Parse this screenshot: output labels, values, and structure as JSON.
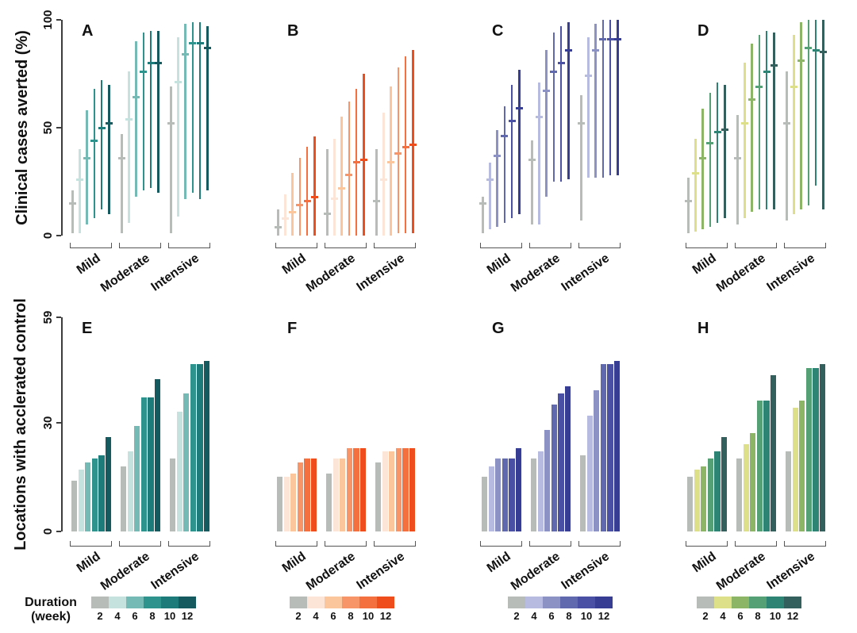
{
  "figure": {
    "background": "#ffffff",
    "rows": {
      "top": {
        "ylabel": "Clinical cases averted (%)",
        "ylim": [
          0,
          100
        ],
        "yticks": [
          "0",
          "50",
          "100"
        ]
      },
      "bottom": {
        "ylabel": "Locations with acclerated control",
        "ylim": [
          0,
          59
        ],
        "yticks": [
          "0",
          "30",
          "59"
        ]
      }
    },
    "categories": [
      "Mild",
      "Moderate",
      "Intensive"
    ],
    "legend": {
      "title_line1": "Duration",
      "title_line2": "(week)",
      "tick_labels": [
        "2",
        "4",
        "6",
        "8",
        "10",
        "12"
      ],
      "position": "bottom"
    }
  },
  "palettes": {
    "teal": [
      "#b7bcb8",
      "#c5e2de",
      "#76bab6",
      "#2f938d",
      "#1d7b7a",
      "#155a5f"
    ],
    "orange": [
      "#b7bcb8",
      "#fce4d6",
      "#fbc69c",
      "#f79468",
      "#f4713f",
      "#ef4e1c"
    ],
    "purple": [
      "#b7bcb8",
      "#b7bbdf",
      "#8c92c3",
      "#6069ad",
      "#4a50a3",
      "#373d92"
    ],
    "green": [
      "#b7bcb8",
      "#dee089",
      "#8db566",
      "#55a075",
      "#2d8374",
      "#33605c"
    ]
  },
  "chart_data": [
    {
      "id": "A",
      "type": "errorbar",
      "row": "top",
      "palette": "teal",
      "title": "A",
      "ylabel": "Clinical cases averted (%)",
      "ylim": [
        0,
        100
      ],
      "categories": [
        "Mild",
        "Moderate",
        "Intensive"
      ],
      "durations_weeks": [
        2,
        4,
        6,
        8,
        10,
        12
      ],
      "series": [
        {
          "category": "Mild",
          "intervals_low_mid_high": [
            [
              1,
              15,
              21
            ],
            [
              1,
              26,
              40
            ],
            [
              5,
              36,
              58
            ],
            [
              8,
              44,
              68
            ],
            [
              12,
              50,
              72
            ],
            [
              10,
              52,
              70
            ]
          ]
        },
        {
          "category": "Moderate",
          "intervals_low_mid_high": [
            [
              1,
              36,
              47
            ],
            [
              6,
              54,
              76
            ],
            [
              18,
              64,
              90
            ],
            [
              21,
              76,
              94
            ],
            [
              22,
              80,
              95
            ],
            [
              20,
              80,
              95
            ]
          ]
        },
        {
          "category": "Intensive",
          "intervals_low_mid_high": [
            [
              1,
              52,
              69
            ],
            [
              9,
              71,
              92
            ],
            [
              17,
              84,
              98
            ],
            [
              20,
              89,
              99
            ],
            [
              17,
              89,
              99
            ],
            [
              21,
              87,
              97
            ]
          ]
        }
      ]
    },
    {
      "id": "B",
      "type": "errorbar",
      "row": "top",
      "palette": "orange",
      "title": "B",
      "ylabel": "Clinical cases averted (%)",
      "ylim": [
        0,
        100
      ],
      "categories": [
        "Mild",
        "Moderate",
        "Intensive"
      ],
      "durations_weeks": [
        2,
        4,
        6,
        8,
        10,
        12
      ],
      "series": [
        {
          "category": "Mild",
          "intervals_low_mid_high": [
            [
              0,
              4,
              12
            ],
            [
              0,
              8,
              19
            ],
            [
              0,
              11,
              29
            ],
            [
              0,
              14,
              36
            ],
            [
              0,
              16,
              41
            ],
            [
              0,
              18,
              46
            ]
          ]
        },
        {
          "category": "Moderate",
          "intervals_low_mid_high": [
            [
              0,
              10,
              40
            ],
            [
              0,
              17,
              45
            ],
            [
              0,
              22,
              55
            ],
            [
              0,
              28,
              62
            ],
            [
              0,
              34,
              68
            ],
            [
              0,
              35,
              75
            ]
          ]
        },
        {
          "category": "Intensive",
          "intervals_low_mid_high": [
            [
              0,
              16,
              40
            ],
            [
              0,
              26,
              57
            ],
            [
              0,
              34,
              69
            ],
            [
              1,
              38,
              78
            ],
            [
              1,
              41,
              83
            ],
            [
              1,
              42,
              86
            ]
          ]
        }
      ]
    },
    {
      "id": "C",
      "type": "errorbar",
      "row": "top",
      "palette": "purple",
      "title": "C",
      "ylabel": "Clinical cases averted (%)",
      "ylim": [
        0,
        100
      ],
      "categories": [
        "Mild",
        "Moderate",
        "Intensive"
      ],
      "durations_weeks": [
        2,
        4,
        6,
        8,
        10,
        12
      ],
      "series": [
        {
          "category": "Mild",
          "intervals_low_mid_high": [
            [
              1,
              15,
              18
            ],
            [
              3,
              26,
              34
            ],
            [
              4,
              37,
              49
            ],
            [
              6,
              46,
              60
            ],
            [
              8,
              53,
              70
            ],
            [
              10,
              59,
              77
            ]
          ]
        },
        {
          "category": "Moderate",
          "intervals_low_mid_high": [
            [
              5,
              35,
              44
            ],
            [
              5,
              55,
              71
            ],
            [
              18,
              67,
              86
            ],
            [
              25,
              76,
              94
            ],
            [
              25,
              80,
              97
            ],
            [
              26,
              86,
              99
            ]
          ]
        },
        {
          "category": "Intensive",
          "intervals_low_mid_high": [
            [
              7,
              52,
              65
            ],
            [
              27,
              74,
              92
            ],
            [
              27,
              86,
              98
            ],
            [
              27,
              91,
              100
            ],
            [
              28,
              91,
              100
            ],
            [
              28,
              91,
              100
            ]
          ]
        }
      ]
    },
    {
      "id": "D",
      "type": "errorbar",
      "row": "top",
      "palette": "green",
      "title": "D",
      "ylabel": "Clinical cases averted (%)",
      "ylim": [
        0,
        100
      ],
      "categories": [
        "Mild",
        "Moderate",
        "Intensive"
      ],
      "durations_weeks": [
        2,
        4,
        6,
        8,
        10,
        12
      ],
      "series": [
        {
          "category": "Mild",
          "intervals_low_mid_high": [
            [
              1,
              16,
              27
            ],
            [
              2,
              29,
              45
            ],
            [
              3,
              36,
              59
            ],
            [
              4,
              43,
              66
            ],
            [
              6,
              48,
              71
            ],
            [
              8,
              49,
              70
            ]
          ]
        },
        {
          "category": "Moderate",
          "intervals_low_mid_high": [
            [
              5,
              36,
              56
            ],
            [
              8,
              52,
              80
            ],
            [
              11,
              63,
              89
            ],
            [
              12,
              69,
              93
            ],
            [
              12,
              76,
              95
            ],
            [
              12,
              79,
              94
            ]
          ]
        },
        {
          "category": "Intensive",
          "intervals_low_mid_high": [
            [
              7,
              52,
              76
            ],
            [
              10,
              69,
              93
            ],
            [
              12,
              81,
              99
            ],
            [
              14,
              87,
              100
            ],
            [
              23,
              86,
              100
            ],
            [
              12,
              85,
              100
            ]
          ]
        }
      ]
    },
    {
      "id": "E",
      "type": "bar",
      "row": "bottom",
      "palette": "teal",
      "title": "E",
      "ylabel": "Locations with acclerated control",
      "ylim": [
        0,
        59
      ],
      "categories": [
        "Mild",
        "Moderate",
        "Intensive"
      ],
      "durations_weeks": [
        2,
        4,
        6,
        8,
        10,
        12
      ],
      "series": [
        {
          "category": "Mild",
          "values": [
            14,
            17,
            19,
            20,
            21,
            26
          ]
        },
        {
          "category": "Moderate",
          "values": [
            18,
            22,
            29,
            37,
            37,
            42
          ]
        },
        {
          "category": "Intensive",
          "values": [
            20,
            33,
            38,
            46,
            46,
            47
          ]
        }
      ]
    },
    {
      "id": "F",
      "type": "bar",
      "row": "bottom",
      "palette": "orange",
      "title": "F",
      "ylabel": "Locations with acclerated control",
      "ylim": [
        0,
        59
      ],
      "categories": [
        "Mild",
        "Moderate",
        "Intensive"
      ],
      "durations_weeks": [
        2,
        4,
        6,
        8,
        10,
        12
      ],
      "series": [
        {
          "category": "Mild",
          "values": [
            15,
            15,
            16,
            19,
            20,
            20
          ]
        },
        {
          "category": "Moderate",
          "values": [
            16,
            20,
            20,
            23,
            23,
            23
          ]
        },
        {
          "category": "Intensive",
          "values": [
            19,
            22,
            22,
            23,
            23,
            23
          ]
        }
      ]
    },
    {
      "id": "G",
      "type": "bar",
      "row": "bottom",
      "palette": "purple",
      "title": "G",
      "ylabel": "Locations with acclerated control",
      "ylim": [
        0,
        59
      ],
      "categories": [
        "Mild",
        "Moderate",
        "Intensive"
      ],
      "durations_weeks": [
        2,
        4,
        6,
        8,
        10,
        12
      ],
      "series": [
        {
          "category": "Mild",
          "values": [
            15,
            18,
            20,
            20,
            20,
            23
          ]
        },
        {
          "category": "Moderate",
          "values": [
            20,
            22,
            28,
            35,
            38,
            40
          ]
        },
        {
          "category": "Intensive",
          "values": [
            21,
            32,
            39,
            46,
            46,
            47
          ]
        }
      ]
    },
    {
      "id": "H",
      "type": "bar",
      "row": "bottom",
      "palette": "green",
      "title": "H",
      "ylabel": "Locations with acclerated control",
      "ylim": [
        0,
        59
      ],
      "categories": [
        "Mild",
        "Moderate",
        "Intensive"
      ],
      "durations_weeks": [
        2,
        4,
        6,
        8,
        10,
        12
      ],
      "series": [
        {
          "category": "Mild",
          "values": [
            15,
            17,
            18,
            20,
            22,
            26
          ]
        },
        {
          "category": "Moderate",
          "values": [
            20,
            24,
            27,
            36,
            36,
            43
          ]
        },
        {
          "category": "Intensive",
          "values": [
            22,
            34,
            36,
            45,
            45,
            46
          ]
        }
      ]
    }
  ]
}
